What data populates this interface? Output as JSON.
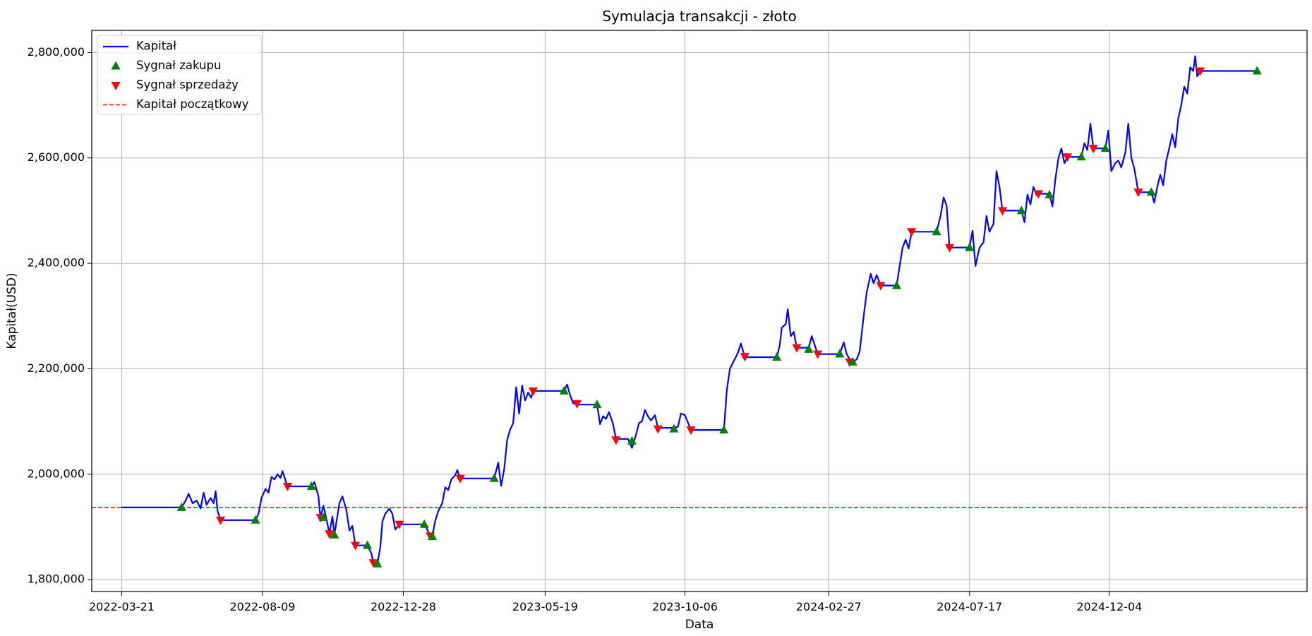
{
  "chart_data": {
    "type": "line",
    "title": "Symulacja transakcji - złoto",
    "xlabel": "Data",
    "ylabel": "Kapitał(USD)",
    "ylim": [
      1777500,
      2842000
    ],
    "xlim": [
      "2022-02-19",
      "2025-06-20"
    ],
    "grid": true,
    "legend_position": "top-left",
    "x_ticks": [
      "2022-03-21",
      "2022-08-09",
      "2022-12-28",
      "2023-05-19",
      "2023-10-06",
      "2024-02-27",
      "2024-07-17",
      "2024-12-04"
    ],
    "y_ticks": [
      1800000,
      2000000,
      2200000,
      2400000,
      2600000,
      2800000
    ],
    "y_tick_labels": [
      "1,800,000",
      "2,000,000",
      "2,200,000",
      "2,400,000",
      "2,600,000",
      "2,800,000"
    ],
    "legend": [
      {
        "label": "Kapitał",
        "kind": "line",
        "color": "#0000ff"
      },
      {
        "label": "Sygnał zakupu",
        "kind": "marker-up",
        "color": "#008000"
      },
      {
        "label": "Sygnał sprzedaży",
        "kind": "marker-down",
        "color": "#ff0000"
      },
      {
        "label": "Kapitał początkowy",
        "kind": "dashed",
        "color": "#ff0000"
      }
    ],
    "series": [
      {
        "name": "Kapitał",
        "color": "#0000ff",
        "points": [
          [
            "2022-03-21",
            1937000
          ],
          [
            "2022-05-20",
            1937000
          ],
          [
            "2022-05-24",
            1950000
          ],
          [
            "2022-05-27",
            1963000
          ],
          [
            "2022-05-31",
            1945000
          ],
          [
            "2022-06-04",
            1950000
          ],
          [
            "2022-06-08",
            1935000
          ],
          [
            "2022-06-11",
            1965000
          ],
          [
            "2022-06-14",
            1942000
          ],
          [
            "2022-06-18",
            1955000
          ],
          [
            "2022-06-21",
            1945000
          ],
          [
            "2022-06-23",
            1968000
          ],
          [
            "2022-06-25",
            1930000
          ],
          [
            "2022-06-28",
            1913000
          ],
          [
            "2022-08-02",
            1913000
          ],
          [
            "2022-08-05",
            1925000
          ],
          [
            "2022-08-08",
            1955000
          ],
          [
            "2022-08-12",
            1972000
          ],
          [
            "2022-08-15",
            1965000
          ],
          [
            "2022-08-18",
            1995000
          ],
          [
            "2022-08-21",
            1990000
          ],
          [
            "2022-08-24",
            2000000
          ],
          [
            "2022-08-27",
            1993000
          ],
          [
            "2022-08-29",
            2006000
          ],
          [
            "2022-09-03",
            1977000
          ],
          [
            "2022-09-27",
            1977000
          ],
          [
            "2022-09-30",
            1985000
          ],
          [
            "2022-10-04",
            1958000
          ],
          [
            "2022-10-06",
            1918000
          ],
          [
            "2022-10-09",
            1940000
          ],
          [
            "2022-10-12",
            1915000
          ],
          [
            "2022-10-15",
            1887000
          ],
          [
            "2022-10-18",
            1920000
          ],
          [
            "2022-10-20",
            1885000
          ],
          [
            "2022-10-25",
            1945000
          ],
          [
            "2022-10-28",
            1958000
          ],
          [
            "2022-11-01",
            1932000
          ],
          [
            "2022-11-04",
            1893000
          ],
          [
            "2022-11-07",
            1902000
          ],
          [
            "2022-11-10",
            1865000
          ],
          [
            "2022-11-22",
            1865000
          ],
          [
            "2022-11-26",
            1850000
          ],
          [
            "2022-11-28",
            1832000
          ],
          [
            "2022-12-02",
            1830000
          ],
          [
            "2022-12-05",
            1862000
          ],
          [
            "2022-12-07",
            1910000
          ],
          [
            "2022-12-10",
            1925000
          ],
          [
            "2022-12-14",
            1935000
          ],
          [
            "2022-12-17",
            1925000
          ],
          [
            "2022-12-20",
            1895000
          ],
          [
            "2022-12-24",
            1905000
          ],
          [
            "2023-01-18",
            1905000
          ],
          [
            "2023-01-21",
            1895000
          ],
          [
            "2023-01-24",
            1883000
          ],
          [
            "2023-01-26",
            1882000
          ],
          [
            "2023-01-29",
            1912000
          ],
          [
            "2023-02-01",
            1930000
          ],
          [
            "2023-02-05",
            1945000
          ],
          [
            "2023-02-08",
            1975000
          ],
          [
            "2023-02-11",
            1970000
          ],
          [
            "2023-02-14",
            1990000
          ],
          [
            "2023-02-18",
            1998000
          ],
          [
            "2023-02-20",
            2008000
          ],
          [
            "2023-02-23",
            1992000
          ],
          [
            "2023-03-29",
            1992000
          ],
          [
            "2023-04-02",
            2022000
          ],
          [
            "2023-04-05",
            1978000
          ],
          [
            "2023-04-08",
            2010000
          ],
          [
            "2023-04-11",
            2065000
          ],
          [
            "2023-04-14",
            2085000
          ],
          [
            "2023-04-17",
            2097000
          ],
          [
            "2023-04-20",
            2165000
          ],
          [
            "2023-04-23",
            2115000
          ],
          [
            "2023-04-26",
            2168000
          ],
          [
            "2023-04-29",
            2140000
          ],
          [
            "2023-05-02",
            2155000
          ],
          [
            "2023-05-05",
            2145000
          ],
          [
            "2023-05-07",
            2158000
          ],
          [
            "2023-06-07",
            2158000
          ],
          [
            "2023-06-10",
            2170000
          ],
          [
            "2023-06-13",
            2150000
          ],
          [
            "2023-06-16",
            2135000
          ],
          [
            "2023-06-20",
            2132000
          ],
          [
            "2023-07-10",
            2132000
          ],
          [
            "2023-07-13",
            2095000
          ],
          [
            "2023-07-16",
            2110000
          ],
          [
            "2023-07-19",
            2105000
          ],
          [
            "2023-07-22",
            2118000
          ],
          [
            "2023-07-26",
            2095000
          ],
          [
            "2023-07-29",
            2067000
          ],
          [
            "2023-08-10",
            2067000
          ],
          [
            "2023-08-14",
            2050000
          ],
          [
            "2023-08-18",
            2075000
          ],
          [
            "2023-08-21",
            2097000
          ],
          [
            "2023-08-24",
            2100000
          ],
          [
            "2023-08-27",
            2122000
          ],
          [
            "2023-08-30",
            2110000
          ],
          [
            "2023-09-02",
            2102000
          ],
          [
            "2023-09-06",
            2112000
          ],
          [
            "2023-09-09",
            2088000
          ],
          [
            "2023-09-25",
            2088000
          ],
          [
            "2023-09-29",
            2090000
          ],
          [
            "2023-10-02",
            2115000
          ],
          [
            "2023-10-06",
            2112000
          ],
          [
            "2023-10-09",
            2098000
          ],
          [
            "2023-10-12",
            2084000
          ],
          [
            "2023-11-14",
            2084000
          ],
          [
            "2023-11-17",
            2160000
          ],
          [
            "2023-11-20",
            2200000
          ],
          [
            "2023-11-24",
            2215000
          ],
          [
            "2023-11-28",
            2230000
          ],
          [
            "2023-12-01",
            2248000
          ],
          [
            "2023-12-05",
            2222000
          ],
          [
            "2024-01-06",
            2222000
          ],
          [
            "2024-01-09",
            2245000
          ],
          [
            "2024-01-11",
            2278000
          ],
          [
            "2024-01-15",
            2285000
          ],
          [
            "2024-01-17",
            2313000
          ],
          [
            "2024-01-20",
            2262000
          ],
          [
            "2024-01-23",
            2270000
          ],
          [
            "2024-01-26",
            2240000
          ],
          [
            "2024-02-07",
            2240000
          ],
          [
            "2024-02-10",
            2262000
          ],
          [
            "2024-02-13",
            2245000
          ],
          [
            "2024-02-16",
            2228000
          ],
          [
            "2024-03-09",
            2228000
          ],
          [
            "2024-03-13",
            2250000
          ],
          [
            "2024-03-16",
            2228000
          ],
          [
            "2024-03-19",
            2218000
          ],
          [
            "2024-03-22",
            2213000
          ],
          [
            "2024-03-26",
            2218000
          ],
          [
            "2024-03-29",
            2233000
          ],
          [
            "2024-04-02",
            2300000
          ],
          [
            "2024-04-05",
            2345000
          ],
          [
            "2024-04-09",
            2380000
          ],
          [
            "2024-04-12",
            2362000
          ],
          [
            "2024-04-15",
            2378000
          ],
          [
            "2024-04-19",
            2358000
          ],
          [
            "2024-05-05",
            2358000
          ],
          [
            "2024-05-08",
            2395000
          ],
          [
            "2024-05-11",
            2430000
          ],
          [
            "2024-05-14",
            2445000
          ],
          [
            "2024-05-17",
            2428000
          ],
          [
            "2024-05-20",
            2460000
          ],
          [
            "2024-06-14",
            2460000
          ],
          [
            "2024-06-18",
            2490000
          ],
          [
            "2024-06-21",
            2525000
          ],
          [
            "2024-06-24",
            2510000
          ],
          [
            "2024-06-27",
            2430000
          ],
          [
            "2024-07-17",
            2430000
          ],
          [
            "2024-07-20",
            2462000
          ],
          [
            "2024-07-23",
            2395000
          ],
          [
            "2024-07-27",
            2430000
          ],
          [
            "2024-07-31",
            2440000
          ],
          [
            "2024-08-03",
            2490000
          ],
          [
            "2024-08-06",
            2460000
          ],
          [
            "2024-08-10",
            2475000
          ],
          [
            "2024-08-13",
            2575000
          ],
          [
            "2024-08-16",
            2545000
          ],
          [
            "2024-08-19",
            2500000
          ],
          [
            "2024-09-07",
            2500000
          ],
          [
            "2024-09-10",
            2478000
          ],
          [
            "2024-09-13",
            2530000
          ],
          [
            "2024-09-16",
            2512000
          ],
          [
            "2024-09-19",
            2545000
          ],
          [
            "2024-09-22",
            2530000
          ],
          [
            "2024-09-24",
            2532000
          ],
          [
            "2024-10-05",
            2532000
          ],
          [
            "2024-10-08",
            2508000
          ],
          [
            "2024-10-11",
            2560000
          ],
          [
            "2024-10-14",
            2600000
          ],
          [
            "2024-10-17",
            2618000
          ],
          [
            "2024-10-20",
            2590000
          ],
          [
            "2024-10-23",
            2602000
          ],
          [
            "2024-11-06",
            2602000
          ],
          [
            "2024-11-09",
            2628000
          ],
          [
            "2024-11-12",
            2615000
          ],
          [
            "2024-11-15",
            2665000
          ],
          [
            "2024-11-18",
            2618000
          ],
          [
            "2024-11-30",
            2618000
          ],
          [
            "2024-12-03",
            2652000
          ],
          [
            "2024-12-06",
            2575000
          ],
          [
            "2024-12-10",
            2590000
          ],
          [
            "2024-12-13",
            2595000
          ],
          [
            "2024-12-16",
            2582000
          ],
          [
            "2024-12-20",
            2610000
          ],
          [
            "2024-12-23",
            2665000
          ],
          [
            "2024-12-26",
            2600000
          ],
          [
            "2024-12-29",
            2580000
          ],
          [
            "2025-01-02",
            2535000
          ],
          [
            "2025-01-15",
            2535000
          ],
          [
            "2025-01-18",
            2515000
          ],
          [
            "2025-01-21",
            2545000
          ],
          [
            "2025-01-24",
            2568000
          ],
          [
            "2025-01-27",
            2548000
          ],
          [
            "2025-01-30",
            2595000
          ],
          [
            "2025-02-02",
            2618000
          ],
          [
            "2025-02-05",
            2645000
          ],
          [
            "2025-02-08",
            2620000
          ],
          [
            "2025-02-11",
            2675000
          ],
          [
            "2025-02-14",
            2700000
          ],
          [
            "2025-02-17",
            2735000
          ],
          [
            "2025-02-20",
            2722000
          ],
          [
            "2025-02-23",
            2772000
          ],
          [
            "2025-02-26",
            2765000
          ],
          [
            "2025-02-28",
            2793000
          ],
          [
            "2025-03-02",
            2755000
          ],
          [
            "2025-03-05",
            2765000
          ],
          [
            "2025-05-01",
            2765000
          ]
        ]
      }
    ],
    "buy_signals": [
      [
        "2022-05-20",
        1937000
      ],
      [
        "2022-08-02",
        1913000
      ],
      [
        "2022-09-27",
        1977000
      ],
      [
        "2022-10-09",
        1918000
      ],
      [
        "2022-10-20",
        1885000
      ],
      [
        "2022-11-22",
        1865000
      ],
      [
        "2022-12-02",
        1830000
      ],
      [
        "2023-01-18",
        1905000
      ],
      [
        "2023-01-26",
        1882000
      ],
      [
        "2023-03-29",
        1992000
      ],
      [
        "2023-06-07",
        2158000
      ],
      [
        "2023-07-10",
        2132000
      ],
      [
        "2023-08-14",
        2063000
      ],
      [
        "2023-09-25",
        2086000
      ],
      [
        "2023-11-14",
        2084000
      ],
      [
        "2024-01-06",
        2222000
      ],
      [
        "2024-02-07",
        2237000
      ],
      [
        "2024-03-09",
        2228000
      ],
      [
        "2024-03-22",
        2213000
      ],
      [
        "2024-05-05",
        2358000
      ],
      [
        "2024-06-14",
        2460000
      ],
      [
        "2024-07-17",
        2430000
      ],
      [
        "2024-09-07",
        2500000
      ],
      [
        "2024-10-05",
        2530000
      ],
      [
        "2024-11-06",
        2602000
      ],
      [
        "2024-11-30",
        2618000
      ],
      [
        "2025-01-15",
        2535000
      ],
      [
        "2025-05-01",
        2765000
      ]
    ],
    "sell_signals": [
      [
        "2022-06-28",
        1913000
      ],
      [
        "2022-09-03",
        1977000
      ],
      [
        "2022-10-06",
        1918000
      ],
      [
        "2022-10-15",
        1887000
      ],
      [
        "2022-11-10",
        1865000
      ],
      [
        "2022-11-28",
        1832000
      ],
      [
        "2022-12-24",
        1905000
      ],
      [
        "2023-01-24",
        1883000
      ],
      [
        "2023-02-23",
        1992000
      ],
      [
        "2023-05-07",
        2158000
      ],
      [
        "2023-06-20",
        2134000
      ],
      [
        "2023-07-29",
        2065000
      ],
      [
        "2023-09-09",
        2086000
      ],
      [
        "2023-10-12",
        2084000
      ],
      [
        "2023-12-05",
        2223000
      ],
      [
        "2024-01-26",
        2240000
      ],
      [
        "2024-02-16",
        2228000
      ],
      [
        "2024-03-19",
        2213000
      ],
      [
        "2024-04-19",
        2358000
      ],
      [
        "2024-05-20",
        2460000
      ],
      [
        "2024-06-27",
        2430000
      ],
      [
        "2024-08-19",
        2500000
      ],
      [
        "2024-09-24",
        2532000
      ],
      [
        "2024-10-23",
        2602000
      ],
      [
        "2024-11-18",
        2618000
      ],
      [
        "2025-01-02",
        2535000
      ],
      [
        "2025-03-05",
        2765000
      ]
    ],
    "initial_capital": {
      "name": "Kapitał początkowy",
      "value": 1937000,
      "color": "#ff0000"
    }
  }
}
